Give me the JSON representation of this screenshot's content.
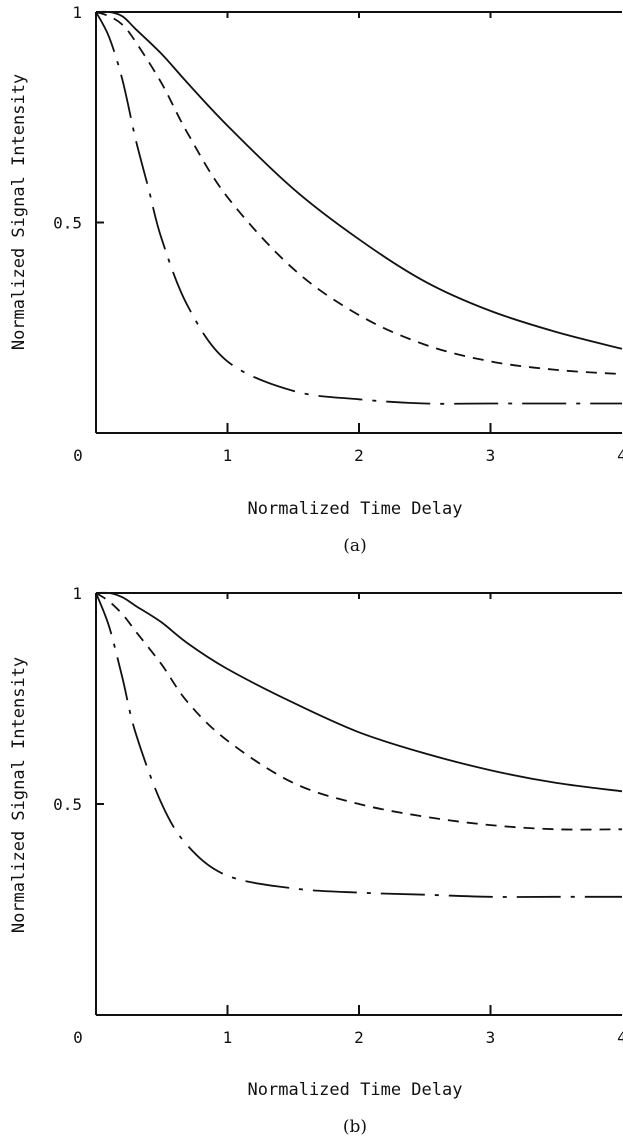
{
  "chart_data": [
    {
      "type": "line",
      "panel_label": "(a)",
      "xlabel": "Normalized Time Delay",
      "ylabel": "Normalized Signal Intensity",
      "xlim": [
        0,
        4
      ],
      "ylim": [
        0,
        1
      ],
      "x_ticks": [
        "0",
        "1",
        "2",
        "3",
        "4"
      ],
      "y_ticks": [
        "0",
        "0.5",
        "1"
      ],
      "series": [
        {
          "line_style": "solid",
          "x": [
            0,
            0.1,
            0.2,
            0.3,
            0.5,
            0.7,
            1.0,
            1.5,
            2.0,
            2.5,
            3.0,
            3.5,
            4.0
          ],
          "y": [
            1.0,
            1.0,
            0.99,
            0.96,
            0.9,
            0.83,
            0.73,
            0.58,
            0.46,
            0.36,
            0.29,
            0.24,
            0.2
          ]
        },
        {
          "line_style": "dashed",
          "x": [
            0,
            0.1,
            0.2,
            0.3,
            0.5,
            0.7,
            1.0,
            1.5,
            2.0,
            2.5,
            3.0,
            3.5,
            4.0
          ],
          "y": [
            1.0,
            0.99,
            0.97,
            0.93,
            0.83,
            0.71,
            0.56,
            0.39,
            0.28,
            0.21,
            0.17,
            0.15,
            0.14
          ]
        },
        {
          "line_style": "dash-dot",
          "x": [
            0,
            0.1,
            0.2,
            0.3,
            0.4,
            0.5,
            0.7,
            1.0,
            1.5,
            2.0,
            2.5,
            3.0,
            3.5,
            4.0
          ],
          "y": [
            1.0,
            0.94,
            0.84,
            0.7,
            0.58,
            0.46,
            0.3,
            0.17,
            0.1,
            0.08,
            0.07,
            0.07,
            0.07,
            0.07
          ]
        }
      ]
    },
    {
      "type": "line",
      "panel_label": "(b)",
      "xlabel": "Normalized Time Delay",
      "ylabel": "Normalized Signal Intensity",
      "xlim": [
        0,
        4
      ],
      "ylim": [
        0,
        1
      ],
      "x_ticks": [
        "0",
        "1",
        "2",
        "3",
        "4"
      ],
      "y_ticks": [
        "0",
        "0.5",
        "1"
      ],
      "series": [
        {
          "line_style": "solid",
          "x": [
            0,
            0.1,
            0.2,
            0.3,
            0.5,
            0.7,
            1.0,
            1.5,
            2.0,
            2.5,
            3.0,
            3.5,
            4.0
          ],
          "y": [
            1.0,
            1.0,
            0.99,
            0.97,
            0.93,
            0.88,
            0.82,
            0.74,
            0.67,
            0.62,
            0.58,
            0.55,
            0.53
          ]
        },
        {
          "line_style": "dashed",
          "x": [
            0,
            0.1,
            0.2,
            0.3,
            0.5,
            0.7,
            1.0,
            1.5,
            2.0,
            2.5,
            3.0,
            3.5,
            4.0
          ],
          "y": [
            1.0,
            0.98,
            0.95,
            0.91,
            0.83,
            0.74,
            0.65,
            0.55,
            0.5,
            0.47,
            0.45,
            0.44,
            0.44
          ]
        },
        {
          "line_style": "dash-dot",
          "x": [
            0,
            0.1,
            0.2,
            0.3,
            0.5,
            0.7,
            1.0,
            1.5,
            2.0,
            2.5,
            3.0,
            3.5,
            4.0
          ],
          "y": [
            1.0,
            0.92,
            0.8,
            0.67,
            0.5,
            0.4,
            0.33,
            0.3,
            0.29,
            0.285,
            0.28,
            0.28,
            0.28
          ]
        }
      ]
    }
  ]
}
